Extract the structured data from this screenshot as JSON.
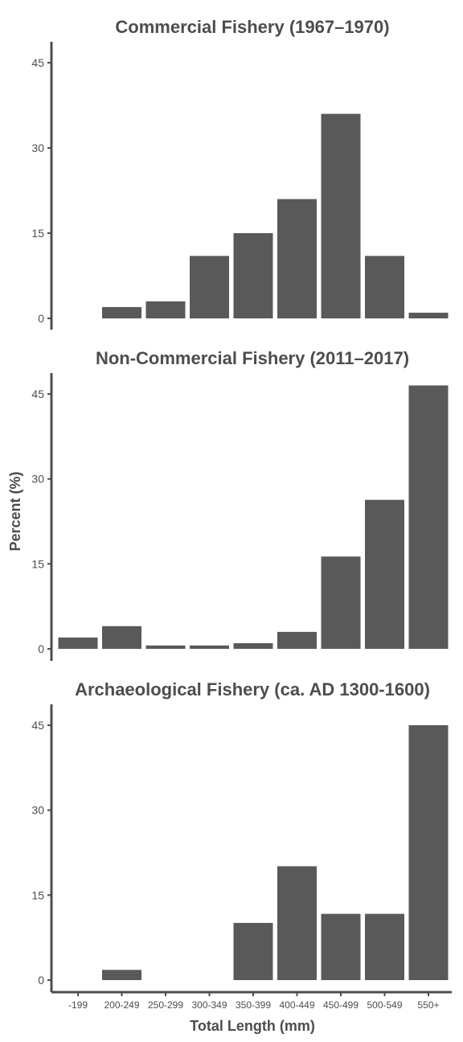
{
  "chart_data": [
    {
      "type": "bar",
      "title": "Commercial Fishery (1967–1970)",
      "categories": [
        "-199",
        "200-249",
        "250-299",
        "300-349",
        "350-399",
        "400-449",
        "450-499",
        "500-549",
        "550+"
      ],
      "values": [
        0,
        2,
        3,
        11,
        15,
        21,
        36,
        11,
        1
      ],
      "yticks": [
        0,
        15,
        30,
        45
      ],
      "ylim": [
        0,
        45
      ],
      "color": "#595959"
    },
    {
      "type": "bar",
      "title": "Non-Commercial Fishery (2011–2017)",
      "categories": [
        "-199",
        "200-249",
        "250-299",
        "300-349",
        "350-399",
        "400-449",
        "450-499",
        "500-549",
        "550+"
      ],
      "values": [
        2,
        4,
        0.6,
        0.6,
        1,
        3,
        16.3,
        26.3,
        46.5
      ],
      "yticks": [
        0,
        15,
        30,
        45
      ],
      "ylim": [
        0,
        45
      ],
      "color": "#595959"
    },
    {
      "type": "bar",
      "title": "Archaeological Fishery (ca. AD 1300-1600)",
      "categories": [
        "-199",
        "200-249",
        "250-299",
        "300-349",
        "350-399",
        "400-449",
        "450-499",
        "500-549",
        "550+"
      ],
      "values": [
        0,
        1.8,
        0,
        0,
        10.1,
        20.1,
        11.7,
        11.7,
        45
      ],
      "yticks": [
        0,
        15,
        30,
        45
      ],
      "ylim": [
        0,
        45
      ],
      "color": "#595959"
    }
  ],
  "labels": {
    "ylabel": "Percent (%)",
    "xlabel": "Total Length (mm)"
  },
  "colors": {
    "axis": "#4d4d4d",
    "text": "#4d4d4d",
    "bar": "#595959",
    "background": "#ffffff"
  }
}
